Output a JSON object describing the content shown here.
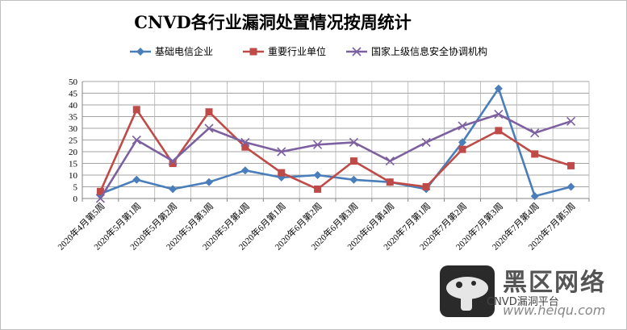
{
  "chart_data": {
    "type": "line",
    "title": "CNVD各行业漏洞处置情况按周统计",
    "categories": [
      "2020年4月第5周",
      "2020年5月第1周",
      "2020年5月第2周",
      "2020年5月第3周",
      "2020年5月第4周",
      "2020年6月第1周",
      "2020年6月第2周",
      "2020年6月第3周",
      "2020年6月第4周",
      "2020年7月第1周",
      "2020年7月第2周",
      "2020年7月第3周",
      "2020年7月第4周",
      "2020年7月第5周"
    ],
    "ylim": [
      0,
      50
    ],
    "yticks": [
      "0",
      "5",
      "10",
      "15",
      "20",
      "25",
      "30",
      "35",
      "40",
      "45",
      "50"
    ],
    "grid": true,
    "legend_position": "top",
    "series": [
      {
        "name": "基础电信企业",
        "color": "#4a7ebb",
        "marker": "diamond",
        "values": [
          2,
          8,
          4,
          7,
          12,
          9,
          10,
          8,
          7,
          4,
          24,
          47,
          1,
          5
        ]
      },
      {
        "name": "重要行业单位",
        "color": "#be4b48",
        "marker": "square",
        "values": [
          3,
          38,
          15,
          37,
          22,
          11,
          4,
          16,
          7,
          5,
          21,
          29,
          19,
          14
        ]
      },
      {
        "name": "国家上级信息安全协调机构",
        "color": "#7d60a0",
        "marker": "x",
        "values": [
          0,
          25,
          16,
          30,
          24,
          20,
          23,
          24,
          16,
          24,
          31,
          36,
          28,
          33
        ]
      }
    ]
  },
  "watermark": {
    "title": "黑区网络",
    "subtitle": "CNVD漏洞平台",
    "url": "www.heiqu.com"
  }
}
